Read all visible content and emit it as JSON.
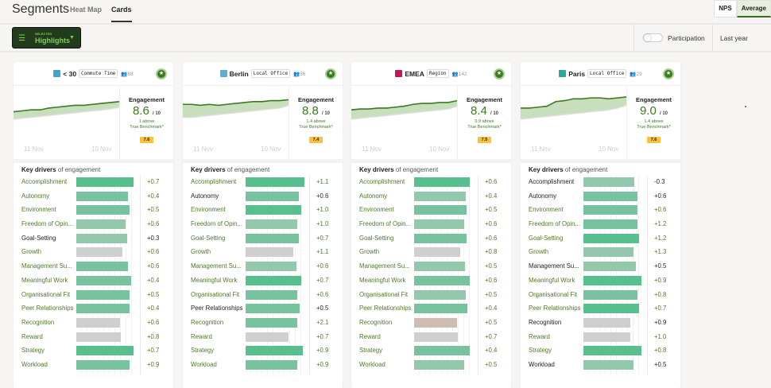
{
  "header": {
    "title": "Segments",
    "tabs": [
      {
        "label": "Heat Map",
        "active": false
      },
      {
        "label": "Cards",
        "active": true
      }
    ],
    "metric_toggle": [
      {
        "label": "NPS",
        "selected": false
      },
      {
        "label": "Average",
        "selected": true
      }
    ]
  },
  "toolbar": {
    "selector_caption": "SELECTED",
    "selector_value": "Highlights",
    "participation_label": "Participation",
    "participation_on": false,
    "period": "Last year"
  },
  "colors": {
    "accent": "#3b7a1e",
    "strong": "#57c08e",
    "medium": "#79c29f",
    "muted": "#93c8ad",
    "gray": "#cfcfcf",
    "tan": "#cdbdb3",
    "benchmark_badge": "#f8c33c"
  },
  "card_common": {
    "engagement_label": "Engagement",
    "out_of": "/ 10",
    "benchmark_label": "True Benchmark*",
    "drivers_title_bold": "Key drivers",
    "drivers_title_rest": "of engagement",
    "date_start": "11 Nov",
    "date_end": "10 Nov",
    "chart_ylim": [
      6,
      10
    ]
  },
  "cards": [
    {
      "name": "< 30",
      "tag": "Commute Time",
      "count": "88",
      "icon_color": "#3fa6c9",
      "score": "8.6",
      "above": "1 above",
      "benchmark": "7.6",
      "trend": [
        8.6,
        8.65,
        8.7,
        8.7,
        8.8,
        8.85,
        8.9,
        8.95,
        8.95,
        9.0,
        9.05,
        9.1,
        9.15
      ],
      "bench_trend": [
        8.2,
        8.25,
        8.3,
        8.35,
        8.4,
        8.45,
        8.5,
        8.55,
        8.6,
        8.65,
        8.7,
        8.75,
        8.85
      ],
      "drivers": [
        {
          "label": "Accomplishment",
          "value": "+0.7",
          "fill": 0.97,
          "tone": "strong",
          "dark": false
        },
        {
          "label": "Autonomy",
          "value": "+0.4",
          "fill": 0.88,
          "tone": "medium",
          "dark": false
        },
        {
          "label": "Environment",
          "value": "+0.5",
          "fill": 0.9,
          "tone": "medium",
          "dark": false
        },
        {
          "label": "Freedom of Opin...",
          "value": "+0.6",
          "fill": 0.84,
          "tone": "muted",
          "dark": false
        },
        {
          "label": "Goal-Setting",
          "value": "+0.3",
          "fill": 0.86,
          "tone": "muted",
          "dark": true
        },
        {
          "label": "Growth",
          "value": "+0.6",
          "fill": 0.78,
          "tone": "gray",
          "dark": false
        },
        {
          "label": "Management Su...",
          "value": "+0.6",
          "fill": 0.88,
          "tone": "medium",
          "dark": false
        },
        {
          "label": "Meaningful Work",
          "value": "+0.4",
          "fill": 0.93,
          "tone": "medium",
          "dark": false
        },
        {
          "label": "Organisational Fit",
          "value": "+0.5",
          "fill": 0.9,
          "tone": "medium",
          "dark": false
        },
        {
          "label": "Peer Relationships",
          "value": "+0.4",
          "fill": 0.91,
          "tone": "medium",
          "dark": false
        },
        {
          "label": "Recognition",
          "value": "+0.6",
          "fill": 0.74,
          "tone": "gray",
          "dark": false
        },
        {
          "label": "Reward",
          "value": "+0.8",
          "fill": 0.76,
          "tone": "gray",
          "dark": false
        },
        {
          "label": "Strategy",
          "value": "+0.7",
          "fill": 0.97,
          "tone": "strong",
          "dark": false
        },
        {
          "label": "Workload",
          "value": "+0.9",
          "fill": 0.9,
          "tone": "medium",
          "dark": false
        }
      ]
    },
    {
      "name": "Berlin",
      "tag": "Local Office",
      "count": "36",
      "icon_color": "#5bb0d0",
      "score": "8.8",
      "above": "1.4 above",
      "benchmark": "7.4",
      "trend": [
        9.0,
        9.0,
        8.95,
        9.0,
        8.95,
        9.0,
        9.05,
        9.1,
        9.15,
        9.15,
        9.2,
        9.2,
        9.25
      ],
      "bench_trend": [
        8.3,
        8.3,
        8.35,
        8.4,
        8.45,
        8.5,
        8.55,
        8.6,
        8.65,
        8.7,
        8.75,
        8.8,
        8.95
      ],
      "drivers": [
        {
          "label": "Accomplishment",
          "value": "+1.1",
          "fill": 1.0,
          "tone": "strong",
          "dark": false
        },
        {
          "label": "Autonomy",
          "value": "+0.6",
          "fill": 0.9,
          "tone": "medium",
          "dark": true
        },
        {
          "label": "Environment",
          "value": "+1.0",
          "fill": 0.94,
          "tone": "strong",
          "dark": false
        },
        {
          "label": "Freedom of Opin...",
          "value": "+1.0",
          "fill": 0.88,
          "tone": "muted",
          "dark": false
        },
        {
          "label": "Goal-Setting",
          "value": "+0.7",
          "fill": 0.9,
          "tone": "medium",
          "dark": false
        },
        {
          "label": "Growth",
          "value": "+1.1",
          "fill": 0.81,
          "tone": "gray",
          "dark": false
        },
        {
          "label": "Management Su...",
          "value": "+0.6",
          "fill": 0.86,
          "tone": "muted",
          "dark": false
        },
        {
          "label": "Meaningful Work",
          "value": "+0.7",
          "fill": 0.95,
          "tone": "strong",
          "dark": false
        },
        {
          "label": "Organisational Fit",
          "value": "+0.6",
          "fill": 0.88,
          "tone": "medium",
          "dark": false
        },
        {
          "label": "Peer Relationships",
          "value": "+0.5",
          "fill": 0.92,
          "tone": "medium",
          "dark": true
        },
        {
          "label": "Recognition",
          "value": "+2.1",
          "fill": 0.88,
          "tone": "medium",
          "dark": false
        },
        {
          "label": "Reward",
          "value": "+0.7",
          "fill": 0.73,
          "tone": "gray",
          "dark": false
        },
        {
          "label": "Strategy",
          "value": "+0.9",
          "fill": 0.97,
          "tone": "strong",
          "dark": false
        },
        {
          "label": "Workload",
          "value": "+0.9",
          "fill": 0.88,
          "tone": "medium",
          "dark": false
        }
      ]
    },
    {
      "name": "EMEA",
      "tag": "Region",
      "count": "142",
      "icon_color": "#c2185b",
      "score": "8.4",
      "above": "0.9 above",
      "benchmark": "7.5",
      "trend": [
        8.7,
        8.75,
        8.75,
        8.8,
        8.8,
        8.85,
        8.9,
        9.0,
        9.05,
        9.05,
        9.1,
        9.1,
        9.2
      ],
      "bench_trend": [
        8.2,
        8.25,
        8.3,
        8.35,
        8.4,
        8.45,
        8.5,
        8.55,
        8.6,
        8.65,
        8.7,
        8.75,
        8.9
      ],
      "drivers": [
        {
          "label": "Accomplishment",
          "value": "+0.6",
          "fill": 0.95,
          "tone": "strong",
          "dark": false
        },
        {
          "label": "Autonomy",
          "value": "+0.4",
          "fill": 0.88,
          "tone": "muted",
          "dark": false
        },
        {
          "label": "Environment",
          "value": "+0.5",
          "fill": 0.89,
          "tone": "medium",
          "dark": false
        },
        {
          "label": "Freedom of Opin...",
          "value": "+0.6",
          "fill": 0.85,
          "tone": "muted",
          "dark": false
        },
        {
          "label": "Goal-Setting",
          "value": "+0.6",
          "fill": 0.89,
          "tone": "medium",
          "dark": false
        },
        {
          "label": "Growth",
          "value": "+0.8",
          "fill": 0.78,
          "tone": "gray",
          "dark": false
        },
        {
          "label": "Management Su...",
          "value": "+0.5",
          "fill": 0.86,
          "tone": "muted",
          "dark": false
        },
        {
          "label": "Meaningful Work",
          "value": "+0.6",
          "fill": 0.94,
          "tone": "medium",
          "dark": false
        },
        {
          "label": "Organisational Fit",
          "value": "+0.5",
          "fill": 0.88,
          "tone": "muted",
          "dark": false
        },
        {
          "label": "Peer Relationships",
          "value": "+0.4",
          "fill": 0.91,
          "tone": "medium",
          "dark": false
        },
        {
          "label": "Recognition",
          "value": "+0.5",
          "fill": 0.73,
          "tone": "tan",
          "dark": false
        },
        {
          "label": "Reward",
          "value": "+0.7",
          "fill": 0.74,
          "tone": "gray",
          "dark": false
        },
        {
          "label": "Strategy",
          "value": "+0.4",
          "fill": 0.94,
          "tone": "medium",
          "dark": false
        },
        {
          "label": "Workload",
          "value": "+0.5",
          "fill": 0.85,
          "tone": "muted",
          "dark": false
        }
      ]
    },
    {
      "name": "Paris",
      "tag": "Local Office",
      "count": "29",
      "icon_color": "#2aa89a",
      "score": "9.0",
      "above": "1.4 above",
      "benchmark": "7.6",
      "trend": [
        8.8,
        8.8,
        8.85,
        8.9,
        9.15,
        9.2,
        9.3,
        9.3,
        9.35,
        9.35,
        9.3,
        9.35,
        9.4
      ],
      "bench_trend": [
        8.2,
        8.25,
        8.3,
        8.35,
        8.4,
        8.45,
        8.5,
        8.55,
        8.6,
        8.65,
        8.7,
        8.8,
        8.95
      ],
      "drivers": [
        {
          "label": "Accomplishment",
          "value": "-0.3",
          "fill": 0.86,
          "tone": "muted",
          "dark": true
        },
        {
          "label": "Autonomy",
          "value": "+0.6",
          "fill": 0.92,
          "tone": "medium",
          "dark": true
        },
        {
          "label": "Environment",
          "value": "+0.6",
          "fill": 0.92,
          "tone": "medium",
          "dark": false
        },
        {
          "label": "Freedom of Opin...",
          "value": "+1.2",
          "fill": 0.92,
          "tone": "medium",
          "dark": false
        },
        {
          "label": "Goal-Setting",
          "value": "+1.2",
          "fill": 0.95,
          "tone": "strong",
          "dark": false
        },
        {
          "label": "Growth",
          "value": "+1.3",
          "fill": 0.85,
          "tone": "muted",
          "dark": false
        },
        {
          "label": "Management Su...",
          "value": "+0.5",
          "fill": 0.89,
          "tone": "muted",
          "dark": true
        },
        {
          "label": "Meaningful Work",
          "value": "+0.9",
          "fill": 0.98,
          "tone": "strong",
          "dark": false
        },
        {
          "label": "Organisational Fit",
          "value": "+0.8",
          "fill": 0.92,
          "tone": "medium",
          "dark": false
        },
        {
          "label": "Peer Relationships",
          "value": "+0.7",
          "fill": 0.95,
          "tone": "strong",
          "dark": false
        },
        {
          "label": "Recognition",
          "value": "+0.9",
          "fill": 0.79,
          "tone": "gray",
          "dark": true
        },
        {
          "label": "Reward",
          "value": "+1.0",
          "fill": 0.79,
          "tone": "gray",
          "dark": false
        },
        {
          "label": "Strategy",
          "value": "+0.8",
          "fill": 0.98,
          "tone": "strong",
          "dark": false
        },
        {
          "label": "Workload",
          "value": "+0.5",
          "fill": 0.85,
          "tone": "muted",
          "dark": true
        }
      ]
    }
  ]
}
